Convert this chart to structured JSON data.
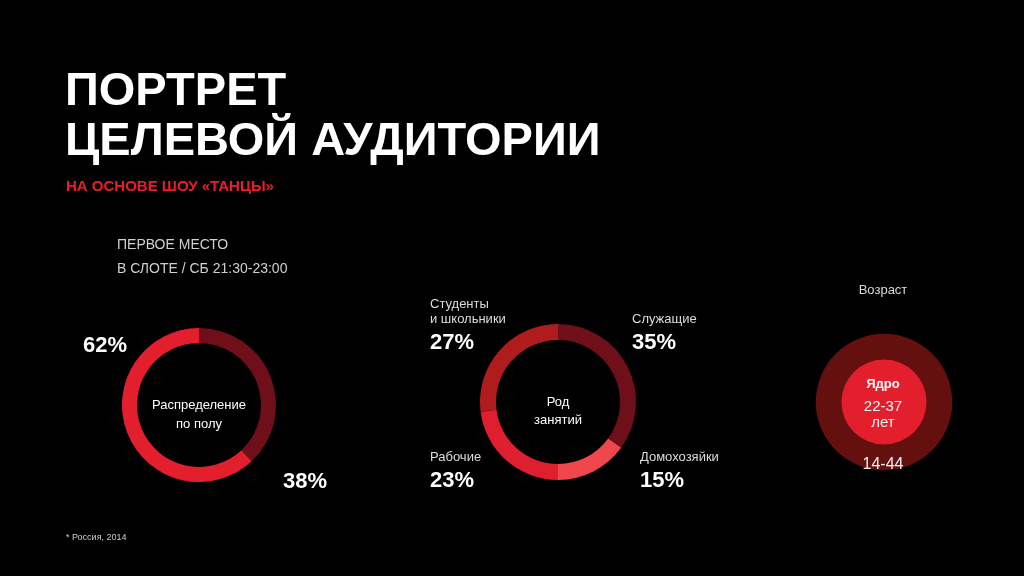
{
  "chart_data": [
    {
      "type": "other",
      "title": "ПОРТРЕТ\nЦЕЛЕВОЙ АУДИТОРИИ",
      "subtitle": "НА ОСНОВЕ ШОУ «ТАНЦЫ»",
      "annotations": [
        "ПЕРВОЕ МЕСТО\nВ СЛОТЕ / СБ 21:30-23:00"
      ]
    },
    {
      "type": "donut",
      "title": "Распределение\nпо полу",
      "categories": [
        null,
        null
      ],
      "values": [
        38,
        62
      ],
      "colors": [
        "#6e0f19",
        "#e31f2d"
      ],
      "value_labels": [
        "38%",
        "62%"
      ]
    },
    {
      "type": "donut",
      "title": "Род\nзанятий",
      "categories": [
        "Служащие",
        "Домохозяйки",
        "Рабочие",
        "Студенты\nи школьники"
      ],
      "values": [
        35,
        15,
        23,
        27
      ],
      "colors": [
        "#6e0f19",
        "#f0474d",
        "#e01f2e",
        "#ae1c1e"
      ],
      "value_labels": [
        "35%",
        "15%",
        "23%",
        "27%"
      ]
    },
    {
      "type": "other",
      "title": "Возраст",
      "categories": [
        "14-44",
        "22-37\nлет"
      ],
      "colors": [
        "#64100f",
        "#e31f2d"
      ],
      "annotations": [
        "Ядро"
      ]
    },
    {
      "type": "other",
      "annotations": [
        "* Россия, 2014"
      ]
    }
  ]
}
